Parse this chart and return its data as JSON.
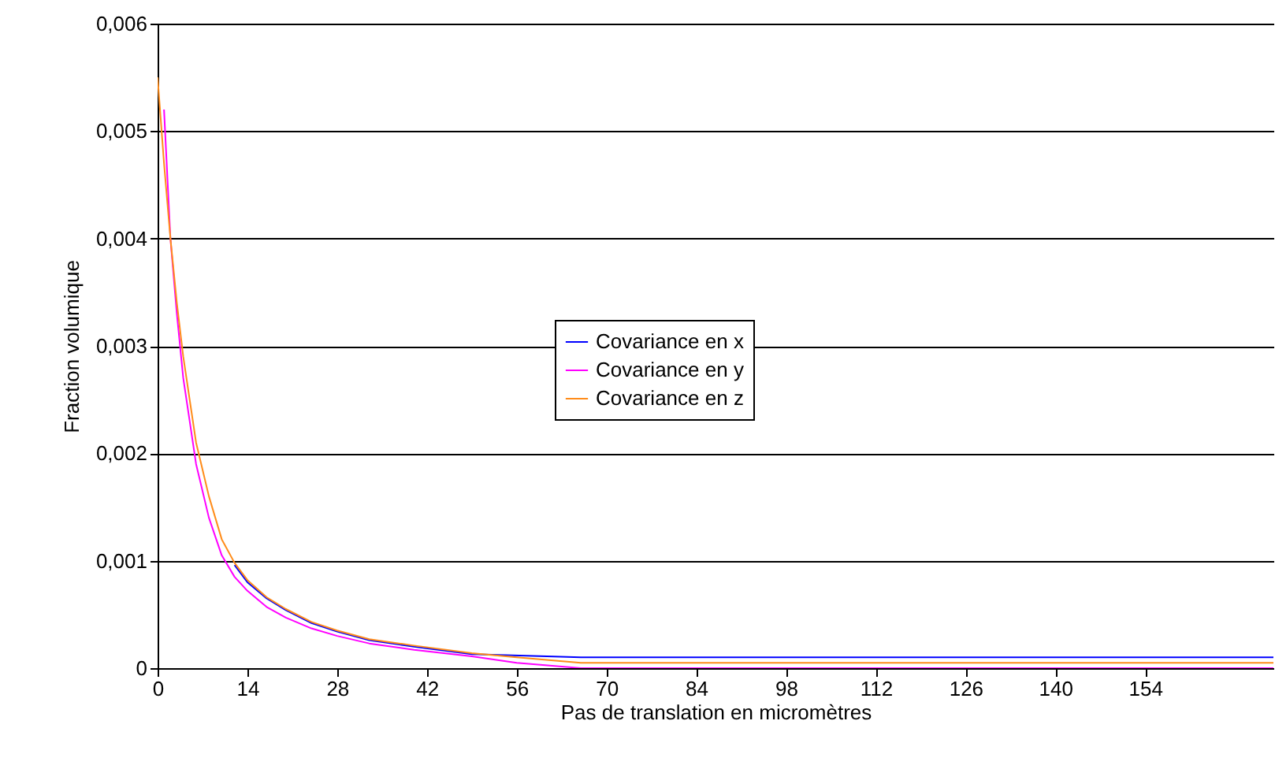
{
  "chart_data": {
    "type": "line",
    "xlabel": "Pas de translation en micromètres",
    "ylabel": "Fraction volumique",
    "xlim": [
      0,
      174
    ],
    "xticks": [
      0,
      14,
      28,
      42,
      56,
      70,
      84,
      98,
      112,
      126,
      140,
      154
    ],
    "ylim": [
      0,
      0.006
    ],
    "yticks": [
      {
        "value": 0,
        "label": "0"
      },
      {
        "value": 0.001,
        "label": "0,001"
      },
      {
        "value": 0.002,
        "label": "0,002"
      },
      {
        "value": 0.003,
        "label": "0,003"
      },
      {
        "value": 0.004,
        "label": "0,004"
      },
      {
        "value": 0.005,
        "label": "0,005"
      },
      {
        "value": 0.006,
        "label": "0,006"
      }
    ],
    "grid": "y",
    "legend": "center",
    "marker": "none",
    "line_style": "solid",
    "series": [
      {
        "name": "Covariance en x",
        "color": "#0000ff",
        "x": [
          12,
          14,
          17,
          20,
          24,
          28,
          33,
          40,
          49,
          66,
          82,
          98,
          120,
          140,
          160,
          174
        ],
        "values": [
          0.00096,
          0.0008,
          0.00065,
          0.00054,
          0.00042,
          0.00034,
          0.00026,
          0.0002,
          0.00013,
          0.0001,
          0.0001,
          0.0001,
          0.0001,
          0.0001,
          0.0001,
          0.0001
        ]
      },
      {
        "name": "Covariance en y",
        "color": "#ff00ff",
        "x": [
          1,
          2,
          3,
          4,
          5,
          6,
          8,
          10,
          12,
          14,
          17,
          20,
          24,
          28,
          33,
          40,
          49,
          56,
          66,
          82,
          98,
          112,
          130,
          150,
          174
        ],
        "values": [
          0.0052,
          0.004,
          0.0033,
          0.0027,
          0.0023,
          0.0019,
          0.0014,
          0.00105,
          0.00085,
          0.00072,
          0.00057,
          0.00047,
          0.00037,
          0.0003,
          0.00023,
          0.00017,
          0.00011,
          5e-05,
          0,
          0,
          0,
          0,
          0,
          0,
          0
        ]
      },
      {
        "name": "Covariance en z",
        "color": "#ff8c1a",
        "x": [
          0,
          1,
          2,
          3,
          4,
          5,
          6,
          8,
          10,
          12,
          14,
          17,
          20,
          24,
          28,
          33,
          40,
          49,
          56,
          66,
          82,
          98,
          120,
          140,
          160,
          174
        ],
        "values": [
          0.0055,
          0.0047,
          0.004,
          0.0034,
          0.0029,
          0.0025,
          0.0021,
          0.0016,
          0.0012,
          0.00098,
          0.00082,
          0.00066,
          0.00055,
          0.00043,
          0.00035,
          0.00027,
          0.00021,
          0.00014,
          0.0001,
          5e-05,
          5e-05,
          5e-05,
          5e-05,
          5e-05,
          5e-05,
          5e-05
        ]
      }
    ]
  }
}
